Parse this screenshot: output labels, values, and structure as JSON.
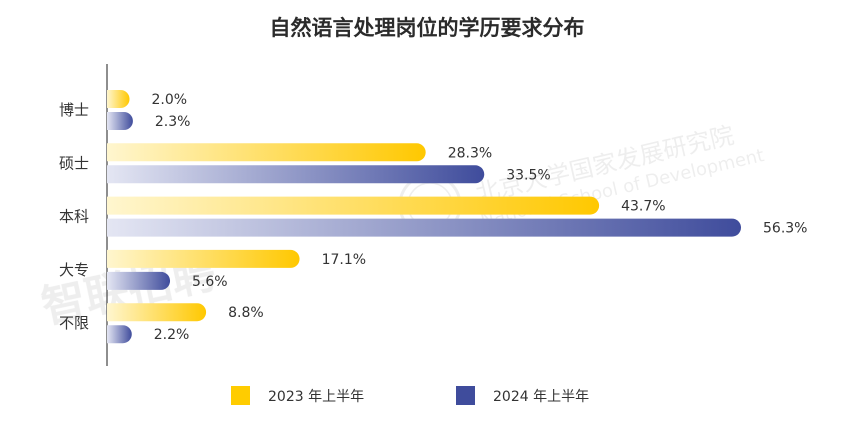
{
  "chart_data": {
    "type": "bar",
    "orientation": "horizontal",
    "title": "自然语言处理岗位的学历要求分布",
    "categories": [
      "博士",
      "硕士",
      "本科",
      "大专",
      "不限"
    ],
    "series": [
      {
        "name": "2023 年上半年",
        "values": [
          2.0,
          28.3,
          43.7,
          17.1,
          8.8
        ],
        "labels": [
          "2.0%",
          "28.3%",
          "43.7%",
          "17.1%",
          "8.8%"
        ],
        "color": "#FFCC00"
      },
      {
        "name": "2024 年上半年",
        "values": [
          2.3,
          33.5,
          56.3,
          5.6,
          2.2
        ],
        "labels": [
          "2.3%",
          "33.5%",
          "56.3%",
          "5.6%",
          "2.2%"
        ],
        "color": "#3F4C9C"
      }
    ],
    "xlim": [
      0,
      58
    ],
    "grid": false,
    "legend_position": "bottom"
  },
  "watermarks": {
    "left": "智联招聘",
    "right_cn": "北京大学国家发展研究院",
    "right_en": "National School of Development"
  }
}
